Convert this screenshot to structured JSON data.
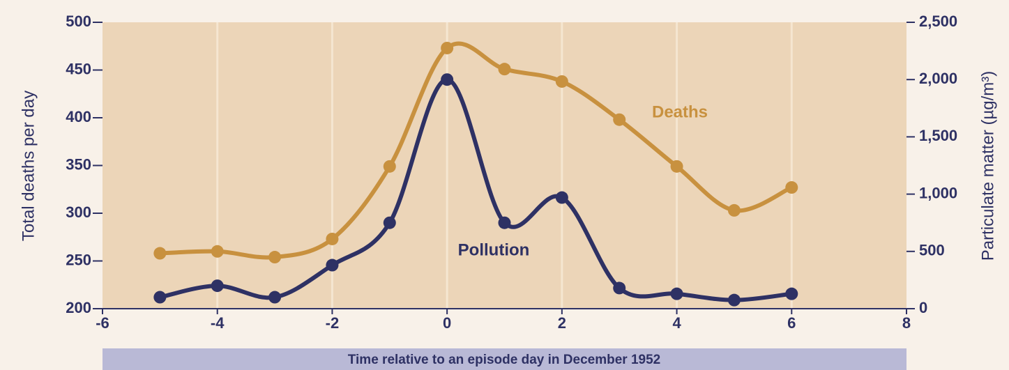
{
  "chart_data": {
    "type": "line",
    "x": [
      -5,
      -4,
      -3,
      -2,
      -1,
      0,
      1,
      2,
      3,
      4,
      5,
      6
    ],
    "xlabel": "Time relative to an episode day in December 1952",
    "ylabel": "Total deaths per day",
    "y2label": "Particulate matter (µg/m³)",
    "xlim": [
      -6,
      8
    ],
    "xticks": [
      -6,
      -4,
      -2,
      0,
      2,
      4,
      6,
      8
    ],
    "ylim": [
      200,
      500
    ],
    "yticks": [
      200,
      250,
      300,
      350,
      400,
      450,
      500
    ],
    "y2lim": [
      0,
      2500
    ],
    "y2ticks": [
      0,
      {
        "value": 500,
        "label": "500"
      },
      {
        "value": 1000,
        "label": "1,000"
      },
      {
        "value": 1500,
        "label": "1,500"
      },
      {
        "value": 2000,
        "label": "2,000"
      },
      {
        "value": 2500,
        "label": "2,500"
      }
    ],
    "grid": true,
    "series": [
      {
        "name": "Deaths",
        "color": "#c8913f",
        "values": [
          258,
          260,
          254,
          273,
          349,
          473,
          451,
          438,
          398,
          349,
          303,
          327
        ]
      },
      {
        "name": "Pollution",
        "color": "#2e3164",
        "axis": "y2",
        "values": [
          100,
          200,
          100,
          380,
          750,
          2000,
          750,
          970,
          180,
          130,
          75,
          130
        ]
      }
    ]
  }
}
